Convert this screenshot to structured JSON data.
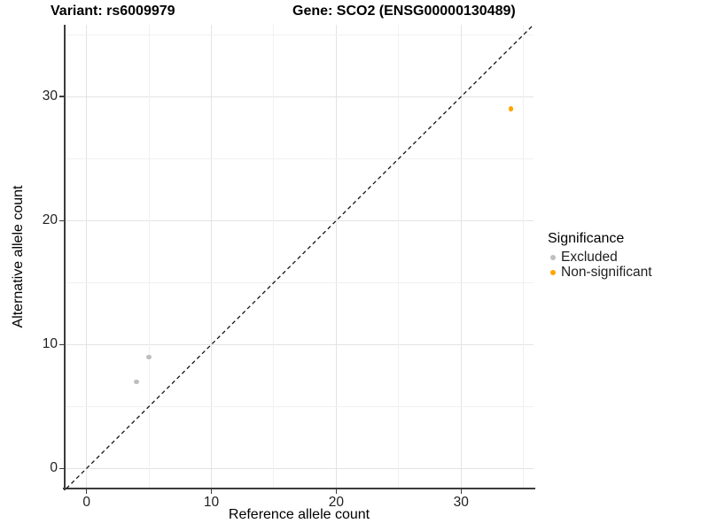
{
  "figure": {
    "title_left": "Variant: rs6009979",
    "title_right": "Gene: SCO2 (ENSG00000130489)"
  },
  "chart_data": {
    "type": "scatter",
    "title": "Variant: rs6009979    Gene: SCO2 (ENSG00000130489)",
    "xlabel": "Reference allele count",
    "ylabel": "Alternative allele count",
    "xlim": [
      -1.75,
      35.8
    ],
    "ylim": [
      -1.62,
      35.8
    ],
    "x_ticks": [
      0,
      10,
      20,
      30
    ],
    "y_ticks": [
      0,
      10,
      20,
      30
    ],
    "x_minor_ticks": [
      5,
      15,
      25,
      35
    ],
    "y_minor_ticks": [
      5,
      15,
      25,
      35
    ],
    "grid": true,
    "identity_line": {
      "slope": 1,
      "intercept": 0,
      "style": "dashed",
      "color": "#141414"
    },
    "series": [
      {
        "name": "Excluded",
        "color": "#BEBEBE",
        "points": [
          {
            "x": 4,
            "y": 7
          },
          {
            "x": 5,
            "y": 9
          }
        ]
      },
      {
        "name": "Non-significant",
        "color": "#FFA500",
        "points": [
          {
            "x": 34,
            "y": 29
          }
        ]
      }
    ],
    "legend": {
      "title": "Significance",
      "position": "right",
      "items": [
        {
          "label": "Excluded",
          "color": "#BEBEBE"
        },
        {
          "label": "Non-significant",
          "color": "#FFA500"
        }
      ]
    },
    "colors": {
      "grid_major": "#e3e3e3",
      "grid_minor": "#f1f1f1",
      "axis_line": "#3c3c3c"
    }
  }
}
